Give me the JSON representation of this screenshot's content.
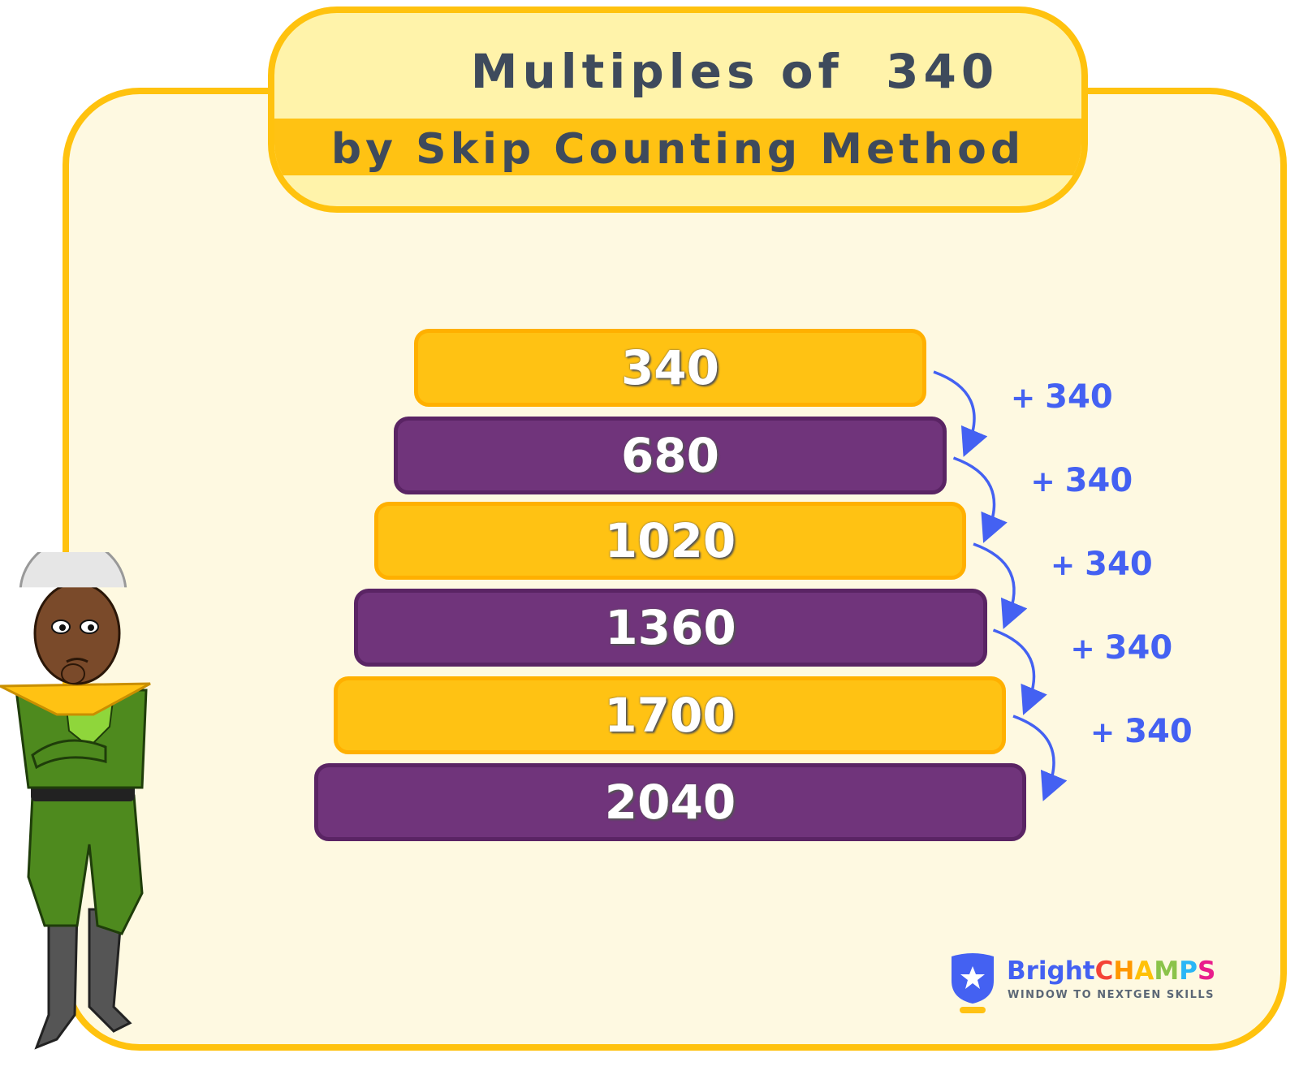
{
  "title": {
    "main": "Multiples of  340",
    "subtitle": "by Skip Counting Method"
  },
  "multiples": [
    "340",
    "680",
    "1020",
    "1360",
    "1700",
    "2040"
  ],
  "step_label": {
    "plus": "+",
    "value": "340"
  },
  "colors": {
    "yellow": "#FFC213",
    "purple": "#70347B",
    "arrow": "#4461F2",
    "border": "#FFC20E",
    "background": "#FEF9E1"
  },
  "logo": {
    "brand_part1": "Bright",
    "brand_letters": [
      "C",
      "H",
      "A",
      "M",
      "P",
      "S"
    ],
    "brand_colors": [
      "#F44336",
      "#FF9800",
      "#FFC107",
      "#8BC34A",
      "#29B6F6",
      "#E91E8C"
    ],
    "tagline": "WINDOW TO NEXTGEN SKILLS"
  }
}
